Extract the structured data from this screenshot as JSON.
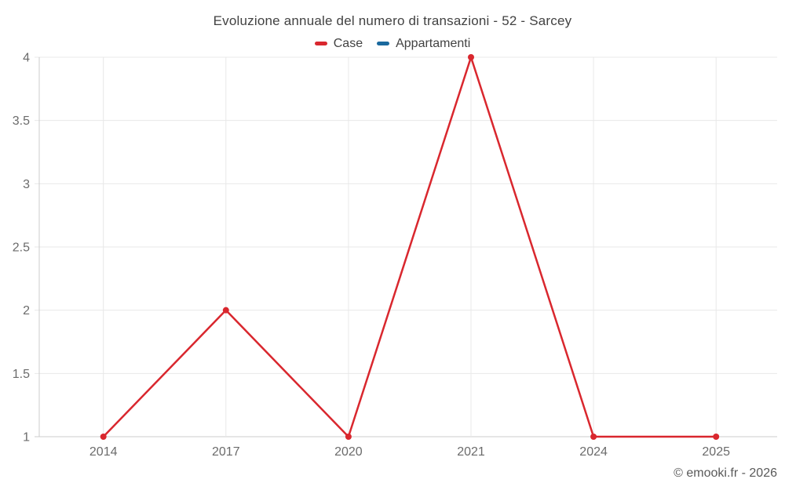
{
  "page": {
    "background": "#ffffff",
    "watermark": "© emooki.fr - 2026"
  },
  "chart_data": {
    "type": "line",
    "title": "Evoluzione annuale del numero di transazioni - 52 - Sarcey",
    "categories": [
      "2014",
      "2017",
      "2020",
      "2021",
      "2024",
      "2025"
    ],
    "series": [
      {
        "name": "Case",
        "color": "#d9272e",
        "values": [
          1,
          2,
          1,
          4,
          1,
          1
        ]
      },
      {
        "name": "Appartamenti",
        "color": "#1a699e",
        "values": []
      }
    ],
    "ylim": [
      1,
      4
    ],
    "yticks": [
      1,
      1.5,
      2,
      2.5,
      3,
      3.5,
      4
    ],
    "grid": true,
    "legend_position": "top",
    "axis_color": "#cccccc",
    "grid_color": "#e8e8e8",
    "tick_label_color": "#6b6b6b",
    "title_color": "#424242",
    "point_radius": 4,
    "line_width": 2.5
  }
}
